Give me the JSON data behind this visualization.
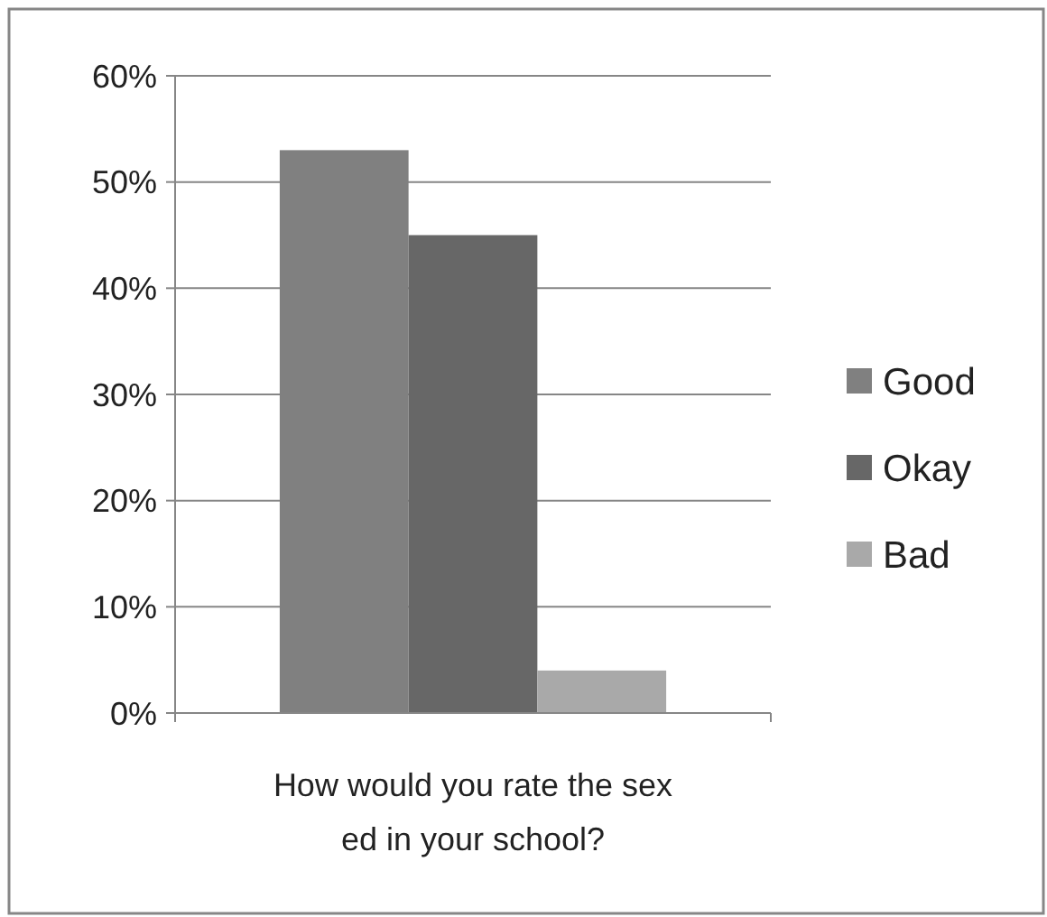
{
  "chart_data": {
    "type": "bar",
    "categories": [
      null
    ],
    "xlabel": "How would you rate the sex ed in your school?",
    "series": [
      {
        "name": "Good",
        "color": "#808080",
        "values": [
          53
        ]
      },
      {
        "name": "Okay",
        "color": "#676767",
        "values": [
          45
        ]
      },
      {
        "name": "Bad",
        "color": "#a9a9a9",
        "values": [
          4
        ]
      }
    ],
    "ylim": [
      0,
      60
    ],
    "yticks": [
      {
        "value": 0,
        "label": "0%"
      },
      {
        "value": 10,
        "label": "10%"
      },
      {
        "value": 20,
        "label": "20%"
      },
      {
        "value": 30,
        "label": "30%"
      },
      {
        "value": 40,
        "label": "40%"
      },
      {
        "value": 50,
        "label": "50%"
      },
      {
        "value": 60,
        "label": "60%"
      }
    ],
    "grid": "y",
    "legend": "right"
  }
}
